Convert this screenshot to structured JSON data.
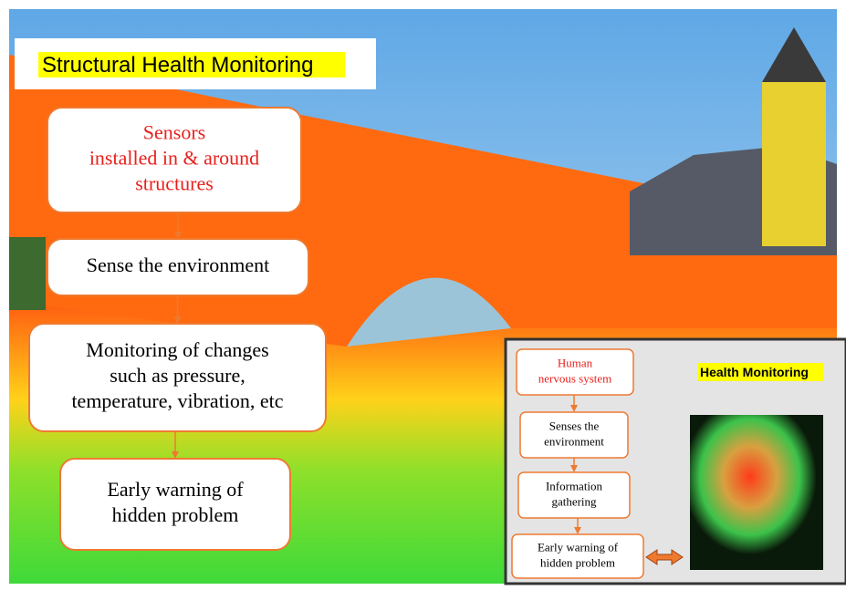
{
  "title": "Structural Health Monitoring",
  "flow": [
    {
      "lines": [
        "Sensors",
        "installed in & around",
        "structures"
      ]
    },
    {
      "lines": [
        "Sense the environment"
      ]
    },
    {
      "lines": [
        "Monitoring of changes",
        "such as pressure,",
        "temperature, vibration, etc"
      ]
    },
    {
      "lines": [
        "Early warning of",
        "hidden problem"
      ]
    }
  ],
  "inset": {
    "title": "Health Monitoring",
    "flow": [
      {
        "lines": [
          "Human",
          "nervous system"
        ]
      },
      {
        "lines": [
          "Senses the",
          "environment"
        ]
      },
      {
        "lines": [
          "Information",
          "gathering"
        ]
      },
      {
        "lines": [
          "Early warning of",
          "hidden problem"
        ]
      }
    ]
  }
}
